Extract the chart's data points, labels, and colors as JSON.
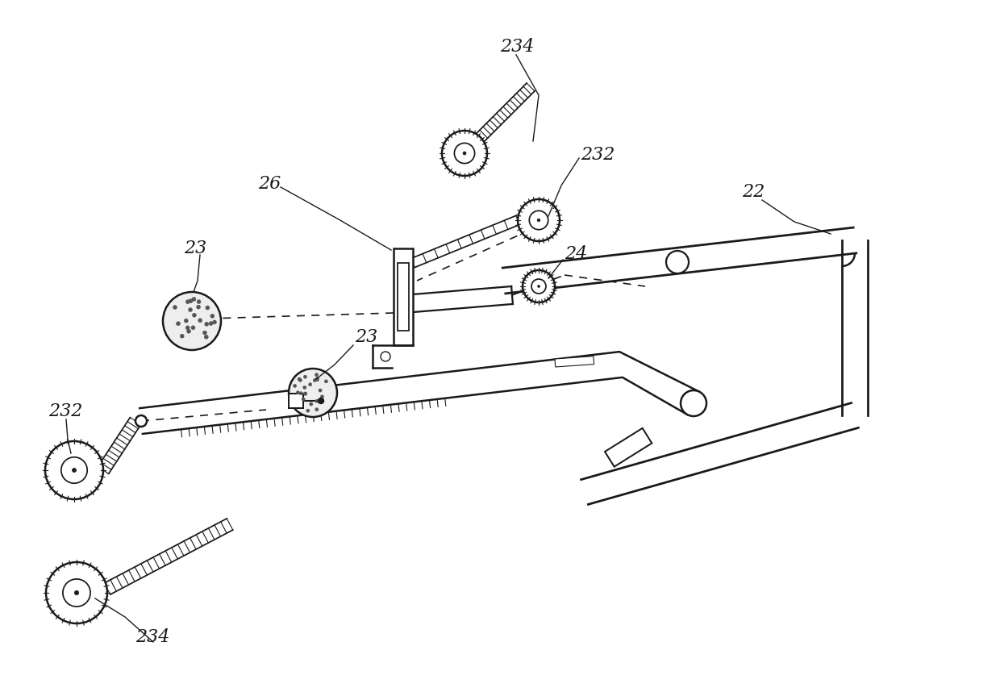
{
  "bg_color": "#ffffff",
  "line_color": "#1a1a1a",
  "fontsize": 16,
  "lw": 1.8,
  "fig_w": 12.4,
  "fig_h": 8.58,
  "dpi": 100
}
